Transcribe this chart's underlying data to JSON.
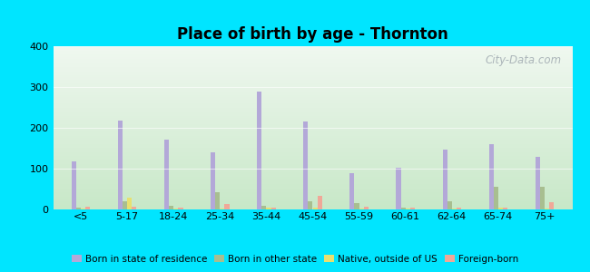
{
  "title": "Place of birth by age - Thornton",
  "categories": [
    "<5",
    "5-17",
    "18-24",
    "25-34",
    "35-44",
    "45-54",
    "55-59",
    "60-61",
    "62-64",
    "65-74",
    "75+"
  ],
  "series": {
    "Born in state of residence": [
      118,
      218,
      172,
      140,
      288,
      215,
      88,
      102,
      147,
      160,
      130
    ],
    "Born in other state": [
      5,
      20,
      8,
      42,
      10,
      20,
      15,
      5,
      20,
      55,
      55
    ],
    "Native, outside of US": [
      2,
      28,
      3,
      3,
      4,
      4,
      2,
      2,
      2,
      4,
      2
    ],
    "Foreign-born": [
      7,
      7,
      4,
      14,
      4,
      33,
      7,
      4,
      4,
      4,
      17
    ]
  },
  "colors": {
    "Born in state of residence": "#b3a8d8",
    "Born in other state": "#a8be90",
    "Native, outside of US": "#e8e070",
    "Foreign-born": "#f0a898"
  },
  "ylim": [
    0,
    400
  ],
  "yticks": [
    0,
    100,
    200,
    300,
    400
  ],
  "bar_width": 0.1,
  "background_top": "#f0f8f0",
  "background_bottom": "#c8e8c8",
  "outer_background": "#00e5ff",
  "watermark": "City-Data.com"
}
